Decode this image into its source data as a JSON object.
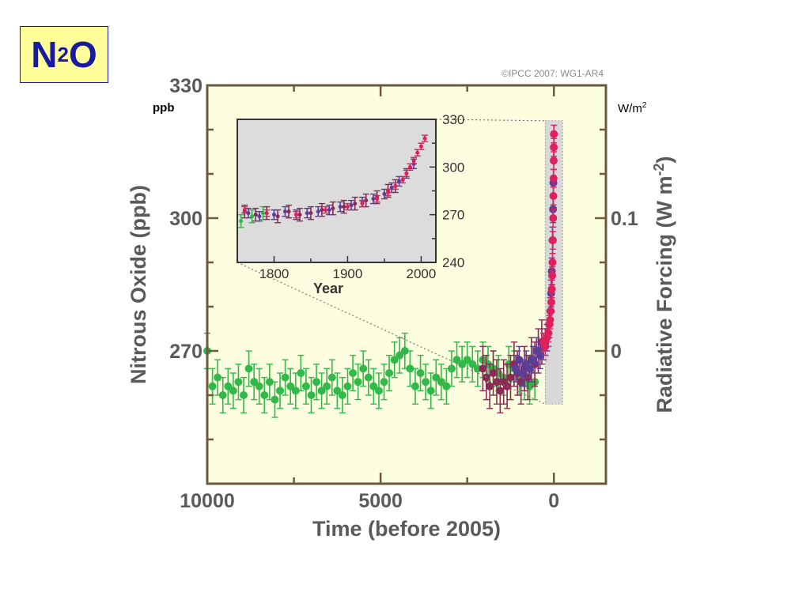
{
  "slide": {
    "title_main": "N",
    "title_sub": "2",
    "title_end": "O",
    "left_unit": "ppb",
    "right_unit_base": "W/m",
    "right_unit_exp": "2"
  },
  "chart_data": [
    {
      "type": "scatter",
      "name": "main",
      "copyright": "©IPCC 2007: WG1-AR4",
      "xlabel": "Time (before 2005)",
      "ylabel": "Nitrous Oxide (ppb)",
      "y2label_base": "Radiative Forcing (W m",
      "y2label_exp": "-2",
      "y2label_end": ")",
      "xlim": [
        10000,
        -1500
      ],
      "ylim": [
        240,
        330
      ],
      "x_ticks": [
        "10000",
        "5000",
        "0"
      ],
      "x_tick_values": [
        10000,
        5000,
        0
      ],
      "y_ticks": [
        "330",
        "300",
        "270"
      ],
      "y_tick_values": [
        330,
        300,
        270
      ],
      "y2_ticks": [
        "0.1",
        "0"
      ],
      "y2_tick_values": [
        300,
        270
      ],
      "colors": {
        "background": "#fdfde0",
        "frame": "#6b5a3a",
        "green": "#33b84a",
        "maroon": "#8b2a55",
        "blue": "#5a3f9a",
        "red": "#e0205a",
        "highlight": "#d8d8d8"
      },
      "highlight_region": {
        "x": [
          250,
          -250
        ],
        "y": [
          258,
          322
        ]
      },
      "series": [
        {
          "name": "",
          "color": "green",
          "x": [
            10000,
            9850,
            9700,
            9550,
            9400,
            9250,
            9100,
            8950,
            8800,
            8650,
            8500,
            8350,
            8200,
            8050,
            7900,
            7750,
            7600,
            7450,
            7300,
            7150,
            7000,
            6850,
            6700,
            6550,
            6400,
            6250,
            6100,
            5950,
            5800,
            5650,
            5500,
            5350,
            5200,
            5050,
            4900,
            4750,
            4600,
            4450,
            4300,
            4150,
            4000,
            3850,
            3700,
            3550,
            3400,
            3250,
            3100,
            2950,
            2800,
            2650,
            2500,
            2350,
            2200,
            2050,
            1900,
            1750,
            1600,
            1450,
            1300,
            1150,
            1000,
            850,
            700,
            550
          ],
          "y": [
            270,
            262,
            264,
            260,
            262,
            261,
            263,
            260,
            266,
            263,
            262,
            260,
            263,
            259,
            261,
            264,
            262,
            261,
            265,
            262,
            260,
            263,
            261,
            262,
            264,
            261,
            260,
            262,
            265,
            263,
            266,
            264,
            262,
            261,
            263,
            265,
            268,
            269,
            270,
            266,
            262,
            265,
            263,
            261,
            264,
            263,
            262,
            266,
            268,
            267,
            268,
            267,
            266,
            268,
            267,
            266,
            265,
            264,
            267,
            266,
            264,
            263,
            262,
            263
          ],
          "err": 4
        },
        {
          "name": "",
          "color": "maroon",
          "x": [
            2050,
            1950,
            1850,
            1750,
            1650,
            1550,
            1450,
            1350,
            1250,
            1150,
            1050,
            950,
            850,
            750,
            650,
            550,
            450,
            350
          ],
          "y": [
            266,
            264,
            262,
            265,
            263,
            261,
            263,
            262,
            264,
            267,
            265,
            263,
            266,
            264,
            268,
            267,
            270,
            272
          ],
          "err": 5
        },
        {
          "name": "",
          "color": "blue",
          "x": [
            1100,
            1000,
            900,
            800,
            700,
            600,
            500,
            400,
            300,
            250,
            200,
            160,
            130,
            100,
            80,
            60,
            40,
            25,
            15
          ],
          "y": [
            266,
            268,
            265,
            267,
            266,
            268,
            270,
            269,
            271,
            272,
            273,
            274,
            276,
            279,
            283,
            288,
            295,
            302,
            308
          ],
          "err": 3
        },
        {
          "name": "",
          "color": "red",
          "x": [
            300,
            250,
            200,
            160,
            130,
            110,
            90,
            75,
            60,
            50,
            40,
            30,
            22,
            15,
            10,
            6,
            3,
            0
          ],
          "y": [
            272,
            271,
            273,
            274,
            276,
            277,
            279,
            281,
            284,
            287,
            290,
            295,
            300,
            305,
            309,
            313,
            316,
            319
          ],
          "err": 2
        }
      ]
    },
    {
      "type": "scatter",
      "name": "inset",
      "xlabel": "Year",
      "xlim": [
        1750,
        2020
      ],
      "ylim": [
        240,
        330
      ],
      "x_ticks": [
        "1800",
        "1900",
        "2000"
      ],
      "x_tick_values": [
        1800,
        1900,
        2000
      ],
      "y_ticks": [
        "330",
        "300",
        "270",
        "240"
      ],
      "y_tick_values": [
        330,
        300,
        270,
        240
      ],
      "series": [
        {
          "name": "",
          "color": "green",
          "x": [
            1755,
            1770,
            1785
          ],
          "y": [
            266,
            269,
            271
          ],
          "err": 4
        },
        {
          "name": "",
          "color": "maroon",
          "x": [
            1760,
            1775,
            1790,
            1805,
            1820,
            1835,
            1850,
            1865,
            1880,
            1895,
            1910,
            1925,
            1940,
            1955,
            1965
          ],
          "y": [
            272,
            270,
            271,
            269,
            272,
            270,
            271,
            273,
            274,
            275,
            277,
            279,
            281,
            285,
            288
          ],
          "err": 4
        },
        {
          "name": "",
          "color": "blue",
          "x": [
            1765,
            1780,
            1800,
            1815,
            1830,
            1845,
            1860,
            1875,
            1890,
            1905,
            1920,
            1935,
            1950,
            1960,
            1970,
            1980,
            1990
          ],
          "y": [
            271,
            269,
            270,
            272,
            270,
            271,
            272,
            273,
            275,
            276,
            278,
            280,
            283,
            287,
            291,
            296,
            302
          ],
          "err": 3
        },
        {
          "name": "",
          "color": "red",
          "x": [
            1760,
            1790,
            1830,
            1870,
            1900,
            1920,
            1940,
            1955,
            1965,
            1975,
            1980,
            1985,
            1990,
            1995,
            2000,
            2005
          ],
          "y": [
            273,
            271,
            270,
            273,
            275,
            277,
            280,
            284,
            288,
            292,
            296,
            300,
            304,
            309,
            313,
            318
          ],
          "err": 2
        }
      ]
    }
  ]
}
